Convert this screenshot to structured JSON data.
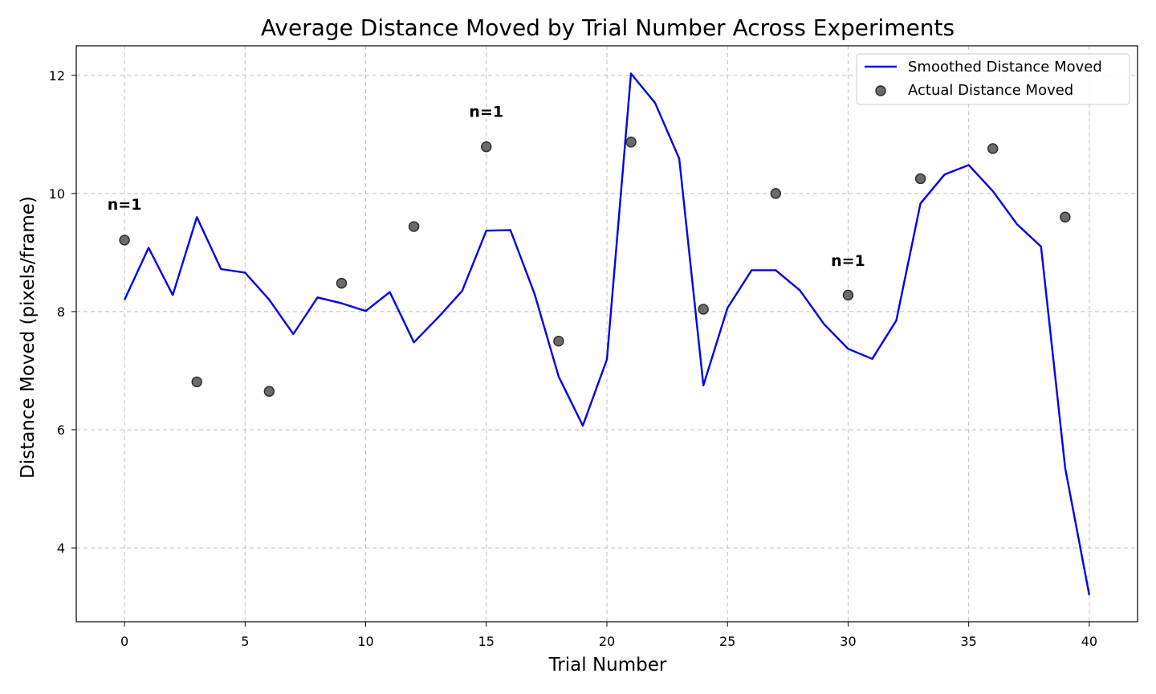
{
  "chart_data": {
    "type": "line",
    "title": "Average Distance Moved by Trial Number Across Experiments",
    "xlabel": "Trial Number",
    "ylabel": "Distance Moved (pixels/frame)",
    "xlim": [
      -2,
      42
    ],
    "ylim": [
      2.75,
      12.5
    ],
    "xticks": [
      0,
      5,
      10,
      15,
      20,
      25,
      30,
      35,
      40
    ],
    "yticks": [
      4,
      6,
      8,
      10,
      12
    ],
    "grid": true,
    "legend_position": "top-right",
    "colors": {
      "line": "#0000ee",
      "points": "#6b6b6b"
    },
    "series": [
      {
        "name": "Smoothed Distance Moved",
        "kind": "line",
        "x": [
          0,
          1,
          2,
          3,
          4,
          5,
          6,
          7,
          8,
          9,
          10,
          11,
          12,
          13,
          14,
          15,
          16,
          17,
          18,
          19,
          20,
          21,
          22,
          23,
          24,
          25,
          26,
          27,
          28,
          29,
          30,
          31,
          32,
          33,
          34,
          35,
          36,
          37,
          38,
          39,
          40
        ],
        "y": [
          8.2,
          9.08,
          8.28,
          9.6,
          8.72,
          8.66,
          8.2,
          7.62,
          8.24,
          8.14,
          8.01,
          8.33,
          7.48,
          7.9,
          8.35,
          9.37,
          9.38,
          8.3,
          6.9,
          6.07,
          7.19,
          12.03,
          11.53,
          10.59,
          6.75,
          8.06,
          8.7,
          8.7,
          8.36,
          7.79,
          7.37,
          7.2,
          7.85,
          9.83,
          10.32,
          10.48,
          10.04,
          9.48,
          9.1,
          5.35,
          3.2
        ]
      },
      {
        "name": "Actual Distance Moved",
        "kind": "scatter",
        "x": [
          0,
          3,
          6,
          9,
          12,
          15,
          18,
          21,
          24,
          27,
          30,
          33,
          36,
          39
        ],
        "y": [
          9.21,
          6.81,
          6.65,
          8.48,
          9.44,
          10.79,
          7.5,
          10.87,
          8.04,
          10.0,
          8.28,
          10.25,
          10.76,
          9.6
        ]
      }
    ],
    "annotations": [
      {
        "text": "n=1",
        "x": 0,
        "y": 9.82
      },
      {
        "text": "n=1",
        "x": 15,
        "y": 11.39
      },
      {
        "text": "n=1",
        "x": 30,
        "y": 8.87
      }
    ]
  }
}
